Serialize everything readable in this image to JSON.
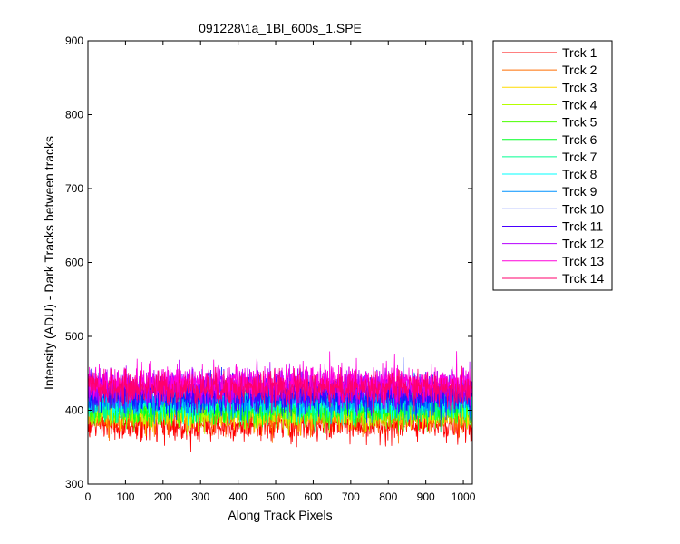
{
  "chart_data": {
    "type": "line",
    "title": "091228\\1a_1Bl_600s_1.SPE",
    "xlabel": "Along Track Pixels",
    "ylabel": "Intensity (ADU) - Dark Tracks between tracks",
    "xlim": [
      0,
      1024
    ],
    "ylim": [
      300,
      900
    ],
    "xticks": [
      0,
      100,
      200,
      300,
      400,
      500,
      600,
      700,
      800,
      900,
      1000
    ],
    "yticks": [
      300,
      400,
      500,
      600,
      700,
      800,
      900
    ],
    "grid": false,
    "legend_position": "outside-top-right",
    "n_points": 1024,
    "series": [
      {
        "name": "Trck 1",
        "color": "#ff0000",
        "mean": 380,
        "noise": 11
      },
      {
        "name": "Trck 2",
        "color": "#ff6d00",
        "mean": 392,
        "noise": 11
      },
      {
        "name": "Trck 3",
        "color": "#ffdb00",
        "mean": 398,
        "noise": 11
      },
      {
        "name": "Trck 4",
        "color": "#b6ff00",
        "mean": 400,
        "noise": 11
      },
      {
        "name": "Trck 5",
        "color": "#49ff00",
        "mean": 402,
        "noise": 11
      },
      {
        "name": "Trck 6",
        "color": "#00ff24",
        "mean": 405,
        "noise": 11
      },
      {
        "name": "Trck 7",
        "color": "#00ff92",
        "mean": 408,
        "noise": 11
      },
      {
        "name": "Trck 8",
        "color": "#00ffff",
        "mean": 412,
        "noise": 11
      },
      {
        "name": "Trck 9",
        "color": "#0092ff",
        "mean": 415,
        "noise": 11
      },
      {
        "name": "Trck 10",
        "color": "#0024ff",
        "mean": 420,
        "noise": 12
      },
      {
        "name": "Trck 11",
        "color": "#4900ff",
        "mean": 425,
        "noise": 12
      },
      {
        "name": "Trck 12",
        "color": "#b600ff",
        "mean": 432,
        "noise": 12
      },
      {
        "name": "Trck 13",
        "color": "#ff00db",
        "mean": 437,
        "noise": 12
      },
      {
        "name": "Trck 14",
        "color": "#ff006d",
        "mean": 430,
        "noise": 11
      }
    ]
  }
}
